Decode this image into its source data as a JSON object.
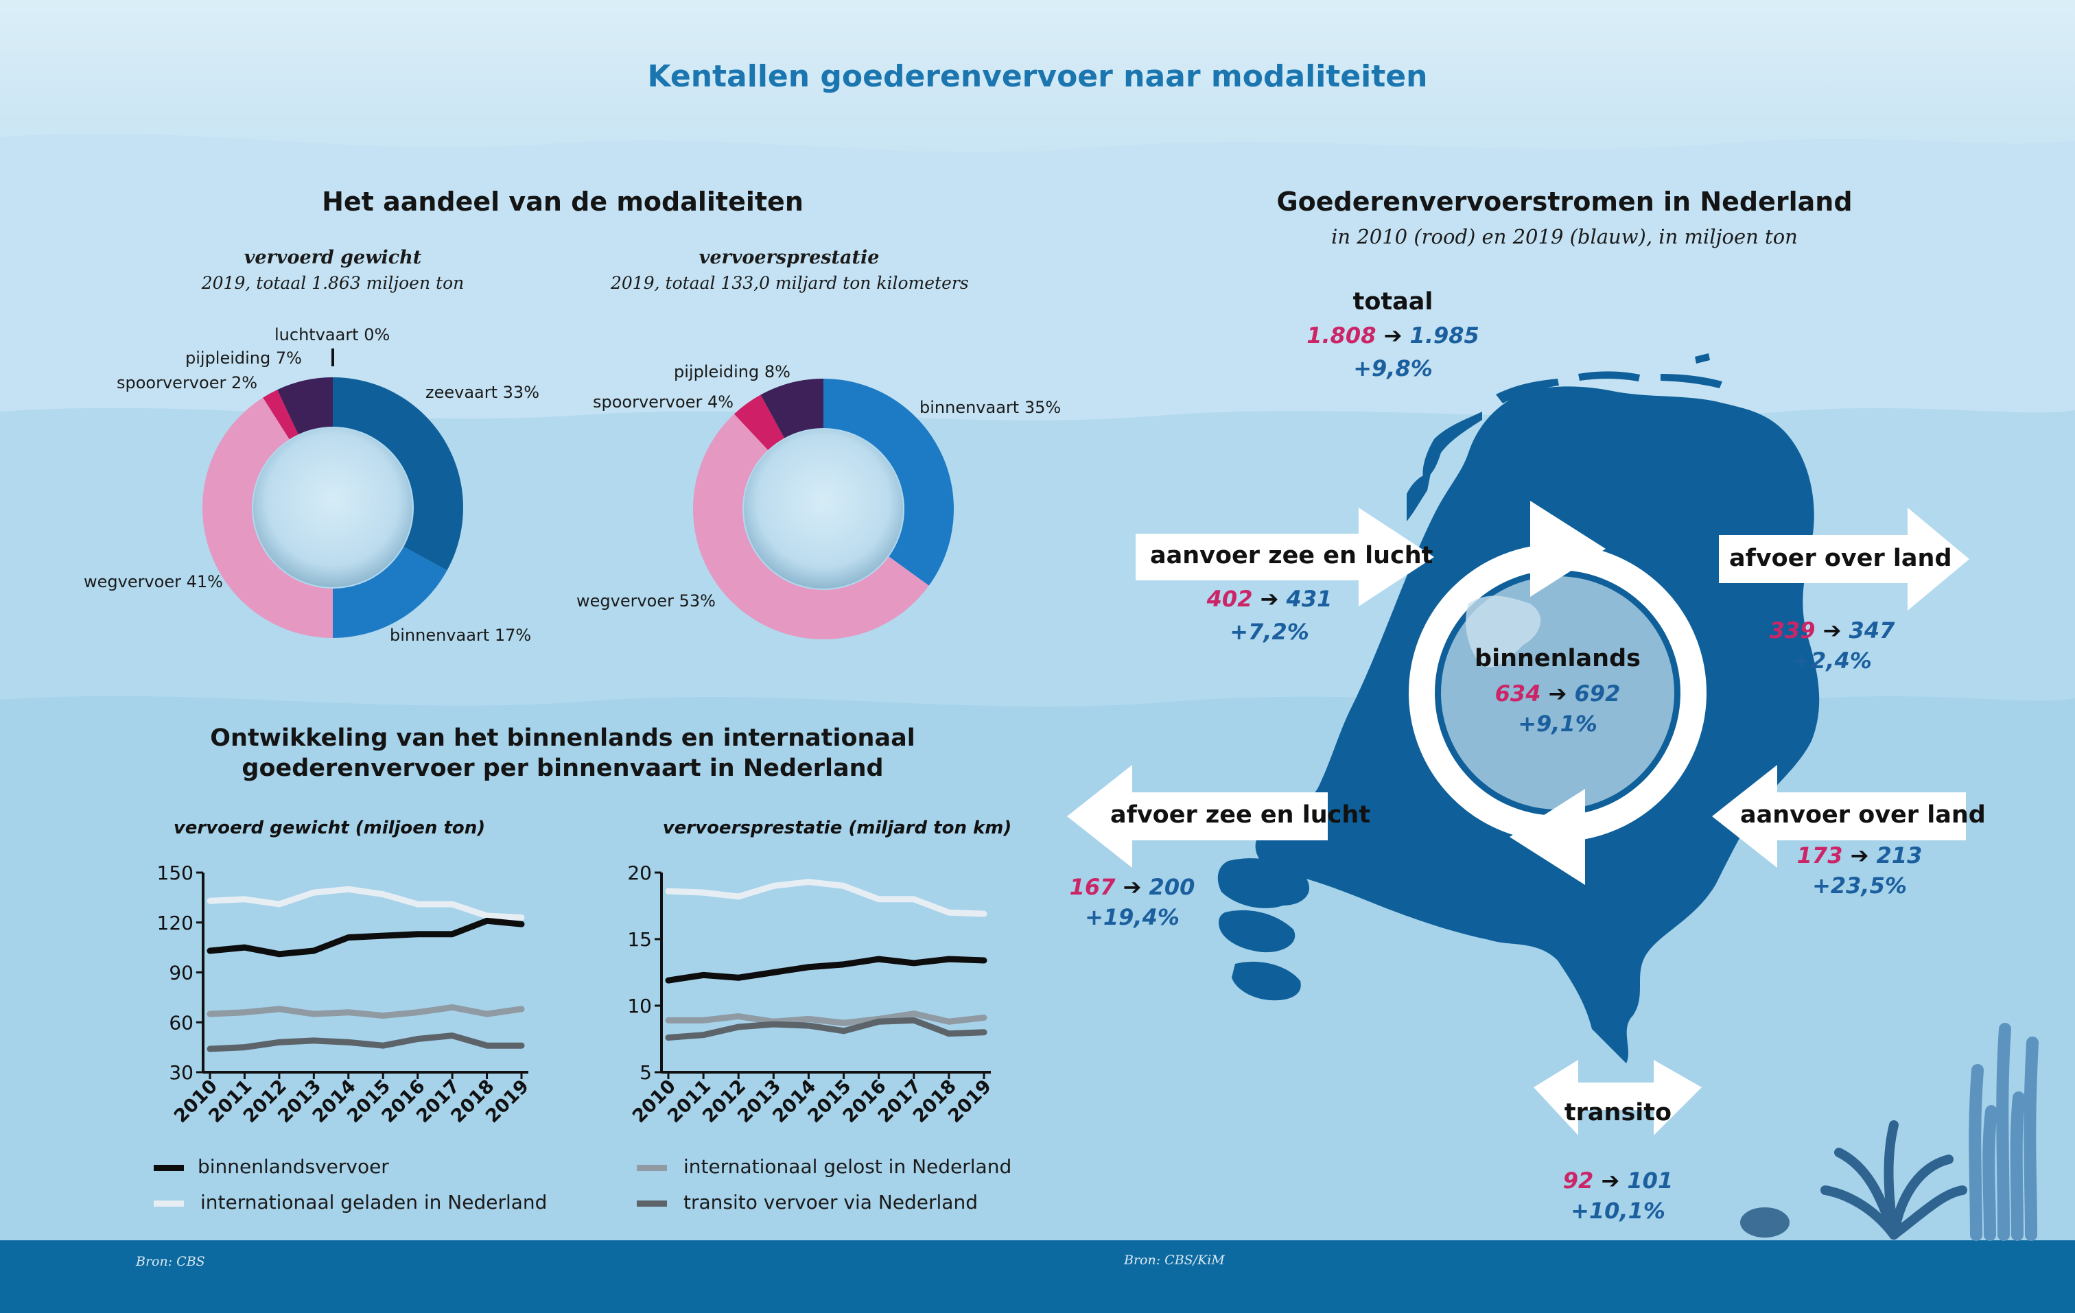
{
  "title": "Kentallen goederenvervoer naar modaliteiten",
  "colors": {
    "zeevaart": "#0f609a",
    "binnenvaart": "#1c7bc4",
    "wegvervoer": "#e598c1",
    "spoorvervoer": "#cf1f66",
    "pijpleiding": "#3d2158",
    "luchtvaart": "#111111",
    "red": "#cc2567",
    "blue": "#1b5f9e",
    "map": "#0f609a",
    "line_binnenlands": "#0d0d0d",
    "line_int_geladen": "#e6eef3",
    "line_int_gelost": "#8f9aa2",
    "line_transito": "#5c646a"
  },
  "shares_section": {
    "heading": "Het aandeel van de modaliteiten",
    "donut1": {
      "title": "vervoerd gewicht",
      "subtitle": "2019, totaal 1.863 miljoen ton",
      "labels": {
        "luchtvaart": "luchtvaart 0%",
        "pijpleiding": "pijpleiding 7%",
        "spoorvervoer": "spoorvervoer 2%",
        "zeevaart": "zeevaart 33%",
        "wegvervoer": "wegvervoer 41%",
        "binnenvaart": "binnenvaart 17%"
      }
    },
    "donut2": {
      "title": "vervoersprestatie",
      "subtitle": "2019, totaal 133,0 miljard ton kilometers",
      "labels": {
        "pijpleiding": "pijpleiding 8%",
        "spoorvervoer": "spoorvervoer 4%",
        "binnenvaart": "binnenvaart 35%",
        "wegvervoer": "wegvervoer 53%"
      }
    }
  },
  "lines_section": {
    "heading_line1": "Ontwikkeling van het binnenlands en internationaal",
    "heading_line2": "goederenvervoer per binnenvaart in Nederland",
    "legend": {
      "binnenlands": "binnenlandsvervoer",
      "int_geladen": "internationaal geladen in Nederland",
      "int_gelost": "internationaal gelost in Nederland",
      "transito": "transito vervoer via Nederland"
    }
  },
  "flows_section": {
    "heading": "Goederenvervoerstromen in Nederland",
    "subtitle": "in 2010 (rood) en 2019 (blauw), in miljoen ton",
    "arrow_glyph": "➔",
    "totaal": {
      "label": "totaal",
      "v2010": "1.808",
      "v2019": "1.985",
      "change": "+9,8%"
    },
    "aanvoer_zee": {
      "label": "aanvoer zee en lucht",
      "v2010": "402",
      "v2019": "431",
      "change": "+7,2%"
    },
    "afvoer_land": {
      "label": "afvoer over land",
      "v2010": "339",
      "v2019": "347",
      "change": "+2,4%"
    },
    "binnenlands": {
      "label": "binnenlands",
      "v2010": "634",
      "v2019": "692",
      "change": "+9,1%"
    },
    "afvoer_zee": {
      "label": "afvoer zee en lucht",
      "v2010": "167",
      "v2019": "200",
      "change": "+19,4%"
    },
    "aanvoer_land": {
      "label": "aanvoer over land",
      "v2010": "173",
      "v2019": "213",
      "change": "+23,5%"
    },
    "transito": {
      "label": "transito",
      "v2010": "92",
      "v2019": "101",
      "change": "+10,1%"
    }
  },
  "sources": {
    "left": "Bron: CBS",
    "right": "Bron: CBS/KiM"
  },
  "chart_data": [
    {
      "type": "pie",
      "title": "vervoerd gewicht",
      "subtitle": "2019, totaal 1.863 miljoen ton",
      "categories": [
        "zeevaart",
        "binnenvaart",
        "wegvervoer",
        "spoorvervoer",
        "pijpleiding",
        "luchtvaart"
      ],
      "values": [
        33,
        17,
        41,
        2,
        7,
        0
      ],
      "unit": "%"
    },
    {
      "type": "pie",
      "title": "vervoersprestatie",
      "subtitle": "2019, totaal 133,0 miljard ton kilometers",
      "categories": [
        "binnenvaart",
        "wegvervoer",
        "spoorvervoer",
        "pijpleiding"
      ],
      "values": [
        35,
        53,
        4,
        8
      ],
      "unit": "%"
    },
    {
      "type": "line",
      "title": "vervoerd gewicht (miljoen ton)",
      "x": [
        "2010",
        "2011",
        "2012",
        "2013",
        "2014",
        "2015",
        "2016",
        "2017",
        "2018",
        "2019"
      ],
      "ylim": [
        30,
        150
      ],
      "yticks": [
        30,
        60,
        90,
        120,
        150
      ],
      "series": [
        {
          "key": "int_geladen",
          "name": "internationaal geladen in Nederland",
          "values": [
            133,
            134,
            131,
            138,
            140,
            137,
            131,
            131,
            124,
            123
          ]
        },
        {
          "key": "int_gelost",
          "name": "internationaal gelost in Nederland",
          "values": [
            65,
            66,
            68,
            65,
            66,
            64,
            66,
            69,
            65,
            68
          ]
        },
        {
          "key": "transito",
          "name": "transito vervoer via Nederland",
          "values": [
            44,
            45,
            48,
            49,
            48,
            46,
            50,
            52,
            46,
            46
          ]
        },
        {
          "key": "binnenlands",
          "name": "binnenlandsvervoer",
          "values": [
            103,
            105,
            101,
            103,
            111,
            112,
            113,
            113,
            121,
            119
          ]
        }
      ]
    },
    {
      "type": "line",
      "title": "vervoersprestatie (miljard ton km)",
      "x": [
        "2010",
        "2011",
        "2012",
        "2013",
        "2014",
        "2015",
        "2016",
        "2017",
        "2018",
        "2019"
      ],
      "ylim": [
        5,
        20
      ],
      "yticks": [
        5,
        10,
        15,
        20
      ],
      "series": [
        {
          "key": "int_geladen",
          "name": "internationaal geladen in Nederland",
          "values": [
            18.6,
            18.5,
            18.2,
            19.0,
            19.3,
            19.0,
            18.0,
            18.0,
            17.0,
            16.9
          ]
        },
        {
          "key": "int_gelost",
          "name": "internationaal gelost in Nederland",
          "values": [
            8.9,
            8.9,
            9.2,
            8.8,
            9.0,
            8.7,
            9.0,
            9.4,
            8.8,
            9.1
          ]
        },
        {
          "key": "transito",
          "name": "transito vervoer via Nederland",
          "values": [
            7.6,
            7.8,
            8.4,
            8.6,
            8.5,
            8.1,
            8.8,
            8.9,
            7.9,
            8.0
          ]
        },
        {
          "key": "binnenlands",
          "name": "binnenlandsvervoer",
          "values": [
            11.9,
            12.3,
            12.1,
            12.5,
            12.9,
            13.1,
            13.5,
            13.2,
            13.5,
            13.4
          ]
        }
      ]
    }
  ]
}
